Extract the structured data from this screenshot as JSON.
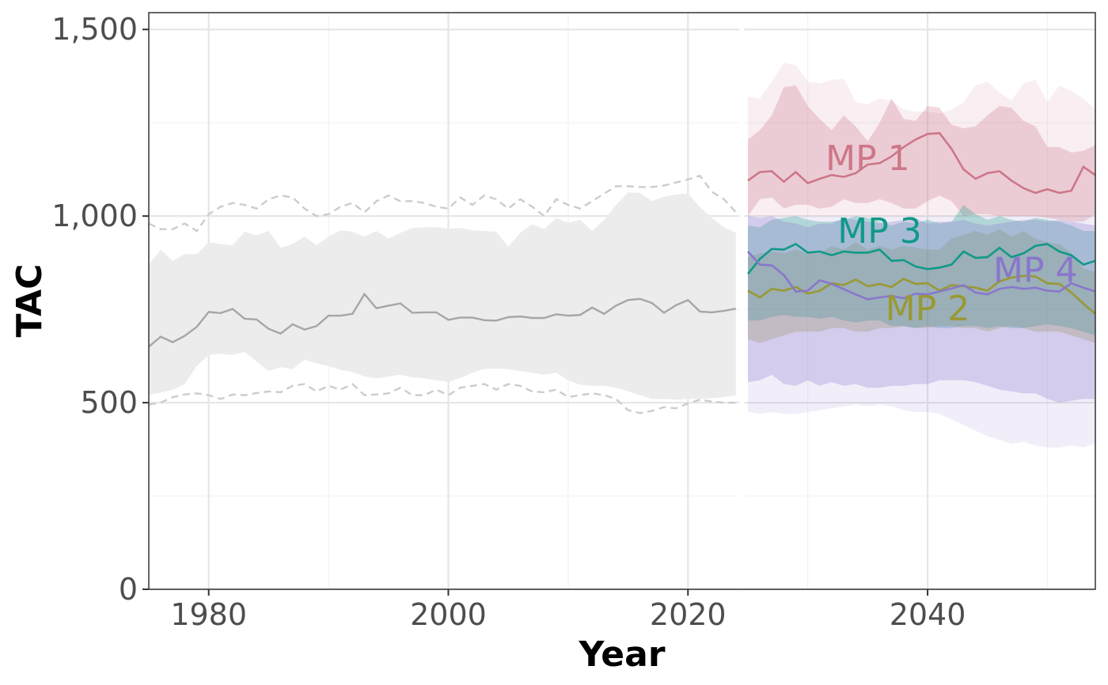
{
  "chart_data": {
    "type": "line",
    "xlabel": "Year",
    "ylabel": "TAC",
    "xlim": [
      1975,
      2054
    ],
    "ylim": [
      0,
      1545
    ],
    "x_ticks": [
      1980,
      2000,
      2020,
      2040
    ],
    "x_tick_labels": [
      "1980",
      "2000",
      "2020",
      "2040"
    ],
    "y_ticks": [
      0,
      500,
      1000,
      1500
    ],
    "y_tick_labels": [
      "0",
      "500",
      "1,000",
      "1,500"
    ],
    "grid": true,
    "legend": "none",
    "historical": {
      "color": "#a6a6a6",
      "band_color": "#ececec",
      "dash_color": "#cccccc",
      "years": [
        1975,
        1976,
        1977,
        1978,
        1979,
        1980,
        1981,
        1982,
        1983,
        1984,
        1985,
        1986,
        1987,
        1988,
        1989,
        1990,
        1991,
        1992,
        1993,
        1994,
        1995,
        1996,
        1997,
        1998,
        1999,
        2000,
        2001,
        2002,
        2003,
        2004,
        2005,
        2006,
        2007,
        2008,
        2009,
        2010,
        2011,
        2012,
        2013,
        2014,
        2015,
        2016,
        2017,
        2018,
        2019,
        2020,
        2021,
        2022,
        2023,
        2024
      ],
      "median": [
        650,
        677,
        662,
        679,
        703,
        743,
        740,
        751,
        725,
        723,
        698,
        685,
        710,
        696,
        705,
        733,
        733,
        738,
        791,
        753,
        760,
        766,
        741,
        742,
        742,
        722,
        728,
        728,
        721,
        720,
        729,
        731,
        727,
        727,
        737,
        733,
        735,
        755,
        738,
        760,
        775,
        778,
        767,
        741,
        761,
        775,
        744,
        742,
        746,
        752
      ],
      "lower": [
        520,
        527,
        535,
        550,
        598,
        628,
        631,
        628,
        636,
        610,
        585,
        595,
        590,
        615,
        605,
        598,
        588,
        582,
        570,
        565,
        570,
        575,
        568,
        565,
        560,
        556,
        566,
        580,
        590,
        592,
        590,
        585,
        580,
        575,
        580,
        560,
        548,
        545,
        545,
        540,
        530,
        520,
        510,
        510,
        508,
        510,
        510,
        512,
        515,
        520
      ],
      "upper": [
        870,
        910,
        880,
        898,
        898,
        930,
        925,
        922,
        958,
        948,
        960,
        915,
        925,
        945,
        922,
        945,
        962,
        958,
        945,
        960,
        940,
        955,
        968,
        970,
        970,
        966,
        968,
        962,
        960,
        958,
        918,
        955,
        978,
        965,
        995,
        982,
        990,
        960,
        990,
        1030,
        1063,
        1062,
        1040,
        1052,
        1058,
        1060,
        1024,
        995,
        970,
        955
      ],
      "dash_lower": [
        495,
        500,
        515,
        522,
        525,
        520,
        510,
        522,
        520,
        526,
        530,
        528,
        545,
        550,
        530,
        545,
        535,
        550,
        520,
        522,
        525,
        540,
        520,
        520,
        535,
        520,
        540,
        545,
        550,
        535,
        550,
        545,
        530,
        528,
        535,
        515,
        520,
        525,
        520,
        510,
        480,
        472,
        478,
        488,
        485,
        498,
        508,
        503,
        500,
        500
      ],
      "dash_upper": [
        980,
        965,
        965,
        980,
        960,
        1005,
        1025,
        1035,
        1030,
        1020,
        1045,
        1055,
        1050,
        1020,
        1000,
        1005,
        1025,
        1035,
        1010,
        1040,
        1055,
        1040,
        1040,
        1035,
        1025,
        1020,
        1050,
        1030,
        1055,
        1045,
        1020,
        1045,
        1025,
        1000,
        1045,
        1030,
        1020,
        1040,
        1060,
        1080,
        1080,
        1078,
        1078,
        1082,
        1090,
        1098,
        1108,
        1065,
        1045,
        1010
      ]
    },
    "projection_years": [
      2025,
      2026,
      2027,
      2028,
      2029,
      2030,
      2031,
      2032,
      2033,
      2034,
      2035,
      2036,
      2037,
      2038,
      2039,
      2040,
      2041,
      2042,
      2043,
      2044,
      2045,
      2046,
      2047,
      2048,
      2049,
      2050,
      2051,
      2052,
      2053,
      2054
    ],
    "series": [
      {
        "name": "MP 1",
        "color": "#cc7788",
        "median": [
          1095,
          1118,
          1120,
          1092,
          1118,
          1088,
          1100,
          1110,
          1105,
          1115,
          1138,
          1142,
          1160,
          1185,
          1205,
          1220,
          1222,
          1180,
          1125,
          1100,
          1115,
          1120,
          1095,
          1075,
          1062,
          1072,
          1062,
          1068,
          1132,
          1110
        ],
        "lower": [
          1000,
          1045,
          1050,
          1020,
          1030,
          1030,
          1020,
          1025,
          1045,
          1035,
          1035,
          1045,
          1035,
          1020,
          1020,
          1040,
          1055,
          1040,
          1000,
          1005,
          1005,
          1000,
          1000,
          1000,
          1000,
          995,
          990,
          985,
          985,
          1005
        ],
        "upper": [
          1205,
          1230,
          1270,
          1345,
          1350,
          1295,
          1260,
          1230,
          1270,
          1240,
          1200,
          1250,
          1315,
          1260,
          1255,
          1295,
          1290,
          1245,
          1235,
          1240,
          1270,
          1295,
          1290,
          1255,
          1240,
          1185,
          1185,
          1170,
          1175,
          1190
        ],
        "outer_lower": [
          1000,
          1000,
          1000,
          1000,
          1000,
          1000,
          1000,
          1000,
          1000,
          1000,
          1000,
          1000,
          1000,
          1000,
          1000,
          1000,
          1000,
          1000,
          1000,
          1000,
          1000,
          1000,
          1000,
          1000,
          1000,
          1000,
          1000,
          1000,
          1000,
          1000
        ],
        "outer_upper": [
          1320,
          1315,
          1360,
          1410,
          1405,
          1360,
          1355,
          1365,
          1368,
          1305,
          1300,
          1315,
          1310,
          1285,
          1280,
          1280,
          1275,
          1285,
          1305,
          1350,
          1360,
          1330,
          1310,
          1355,
          1365,
          1305,
          1350,
          1335,
          1315,
          1285
        ],
        "label_year": 2035,
        "label_y": 1155
      },
      {
        "name": "MP 2",
        "color": "#999933",
        "median": [
          800,
          782,
          805,
          800,
          810,
          792,
          800,
          820,
          815,
          830,
          812,
          818,
          810,
          832,
          818,
          820,
          800,
          815,
          812,
          808,
          800,
          825,
          835,
          840,
          838,
          820,
          818,
          795,
          765,
          738
        ],
        "lower": [
          670,
          660,
          670,
          680,
          690,
          690,
          690,
          700,
          700,
          690,
          690,
          700,
          700,
          705,
          700,
          700,
          705,
          705,
          700,
          700,
          690,
          700,
          705,
          700,
          690,
          690,
          690,
          680,
          670,
          660
        ],
        "upper": [
          890,
          900,
          905,
          900,
          910,
          900,
          900,
          920,
          910,
          930,
          910,
          920,
          910,
          920,
          915,
          910,
          910,
          940,
          950,
          960,
          950,
          965,
          945,
          960,
          940,
          930,
          925,
          900,
          860,
          850
        ],
        "label_year": 2040,
        "label_y": 752
      },
      {
        "name": "MP 3",
        "color": "#119988",
        "median": [
          845,
          885,
          912,
          910,
          925,
          902,
          905,
          895,
          905,
          902,
          902,
          910,
          880,
          882,
          865,
          858,
          862,
          870,
          905,
          888,
          890,
          915,
          890,
          900,
          920,
          925,
          905,
          895,
          870,
          880
        ],
        "lower": [
          720,
          720,
          730,
          735,
          730,
          730,
          725,
          730,
          720,
          715,
          720,
          720,
          705,
          705,
          700,
          705,
          700,
          700,
          705,
          705,
          700,
          705,
          700,
          700,
          705,
          710,
          705,
          700,
          690,
          680
        ],
        "upper": [
          975,
          970,
          990,
          995,
          1000,
          990,
          985,
          985,
          990,
          1000,
          995,
          985,
          975,
          985,
          980,
          990,
          980,
          985,
          1030,
          1005,
          990,
          1000,
          990,
          985,
          995,
          990,
          985,
          975,
          960,
          960
        ],
        "label_year": 2036,
        "label_y": 960
      },
      {
        "name": "MP 4",
        "color": "#8877cc",
        "median": [
          905,
          870,
          868,
          842,
          798,
          800,
          828,
          818,
          804,
          790,
          777,
          782,
          786,
          780,
          792,
          790,
          798,
          806,
          815,
          795,
          790,
          805,
          810,
          805,
          808,
          800,
          798,
          820,
          808,
          798
        ],
        "lower": [
          555,
          560,
          575,
          550,
          545,
          560,
          545,
          555,
          545,
          550,
          540,
          540,
          545,
          545,
          550,
          550,
          560,
          560,
          560,
          555,
          545,
          535,
          530,
          525,
          525,
          510,
          500,
          505,
          510,
          510
        ],
        "upper": [
          1000,
          995,
          1000,
          985,
          980,
          970,
          980,
          980,
          995,
          990,
          985,
          980,
          985,
          990,
          995,
          980,
          985,
          985,
          990,
          980,
          975,
          980,
          985,
          990,
          990,
          985,
          990,
          985,
          980,
          975
        ],
        "outer_lower": [
          475,
          470,
          475,
          470,
          470,
          475,
          480,
          485,
          490,
          495,
          490,
          495,
          490,
          480,
          475,
          475,
          470,
          455,
          440,
          425,
          410,
          400,
          390,
          395,
          385,
          380,
          380,
          385,
          380,
          390
        ],
        "outer_upper": [
          1000,
          1000,
          1000,
          1000,
          1000,
          1000,
          1000,
          1000,
          1000,
          1000,
          1000,
          1000,
          1000,
          1000,
          1000,
          1000,
          1000,
          1000,
          1000,
          1000,
          1000,
          1000,
          1000,
          1000,
          1000,
          1000,
          1000,
          1000,
          1000,
          1000
        ],
        "label_year": 2049,
        "label_y": 855
      }
    ]
  }
}
